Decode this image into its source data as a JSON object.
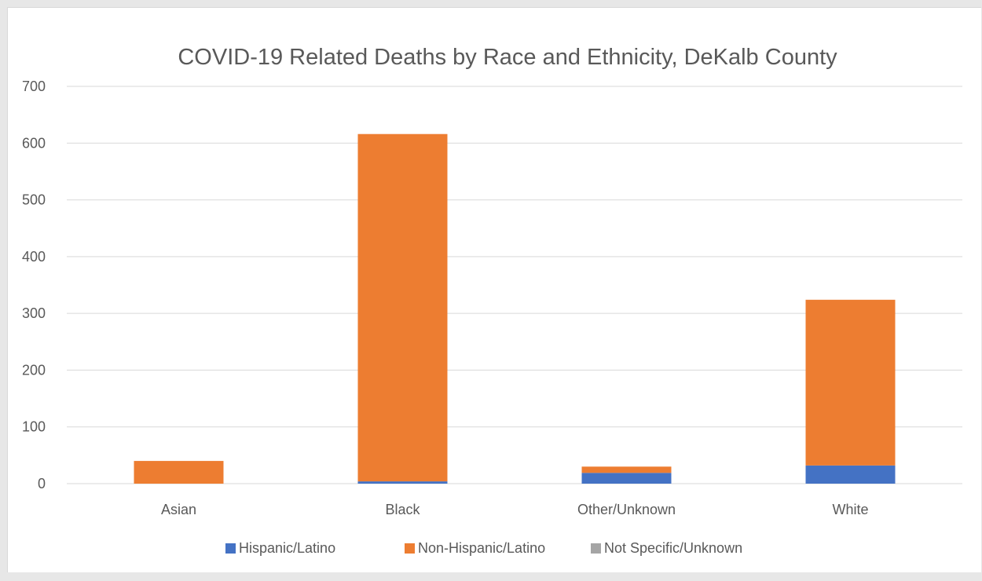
{
  "chart_data": {
    "type": "bar",
    "stacked": true,
    "title": "COVID-19 Related Deaths by Race and Ethnicity, DeKalb County",
    "xlabel": "",
    "ylabel": "",
    "categories": [
      "Asian",
      "Black",
      "Other/Unknown",
      "White"
    ],
    "series": [
      {
        "name": "Hispanic/Latino",
        "color": "#4472c4",
        "values": [
          0,
          4,
          19,
          32
        ]
      },
      {
        "name": "Non-Hispanic/Latino",
        "color": "#ed7d31",
        "values": [
          40,
          612,
          11,
          292
        ]
      },
      {
        "name": "Not Specific/Unknown",
        "color": "#a5a5a5",
        "values": [
          0,
          0,
          0,
          0
        ]
      }
    ],
    "ylim": [
      0,
      700
    ],
    "yticks": [
      0,
      100,
      200,
      300,
      400,
      500,
      600,
      700
    ],
    "grid": true,
    "legend": "bottom"
  }
}
